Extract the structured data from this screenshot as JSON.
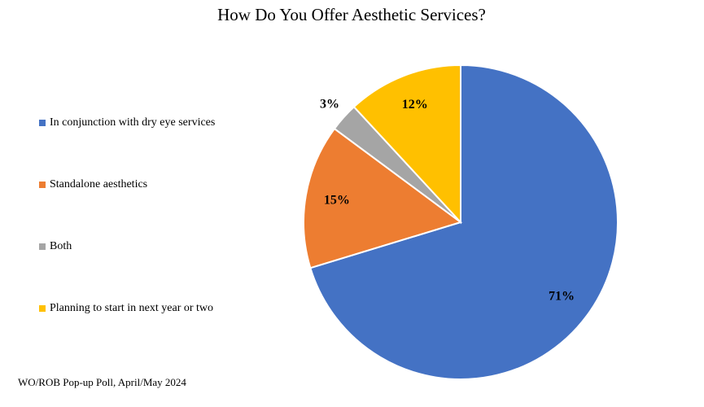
{
  "chart_data": {
    "type": "pie",
    "title": "How Do You Offer Aesthetic Services?",
    "categories": [
      "In conjunction with dry eye services",
      "Standalone aesthetics",
      "Both",
      "Planning to start in next year or two"
    ],
    "values": [
      71,
      15,
      3,
      12
    ],
    "value_labels": [
      "71%",
      "15%",
      "3%",
      "12%"
    ],
    "colors": [
      "#4472c4",
      "#ed7d31",
      "#a5a5a5",
      "#ffc000"
    ],
    "legend": "left",
    "source": "WO/ROB Pop-up Poll, April/May 2024"
  }
}
